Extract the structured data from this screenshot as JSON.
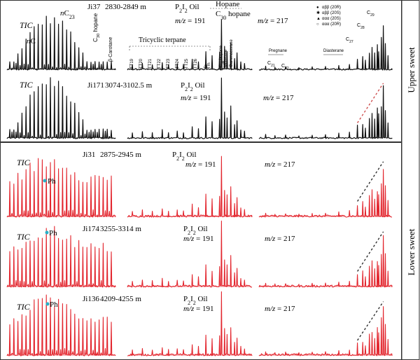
{
  "chart_data": {
    "type": "line",
    "groups": [
      {
        "label": "Upper sweet"
      },
      {
        "label": "Lower sweet"
      }
    ],
    "legend": [
      "αββ (20R)",
      "αββ (20S)",
      "ααα (20S)",
      "ααα (20R)"
    ],
    "rows": [
      {
        "well": "Ji37",
        "depth": "2830-2849 m",
        "oil": "P2I2 Oil",
        "ion191": "m/z = 191",
        "ion217": "m/z = 217",
        "tic": "TIC",
        "color": "#111111",
        "labels": {
          "nC23": "nC23",
          "nC": "nC",
          "c30hop": "C30 hopane",
          "carot": "β-Carotane",
          "tric": "Tricyclic terpane",
          "hop": "Hopane",
          "hopc30": "C30 hopane",
          "tt": [
            "TT19",
            "TT20",
            "TT21",
            "TT22",
            "TT23",
            "TT24",
            "TT25",
            "TT26"
          ],
          "ts": "Ts",
          "tm": "Tm",
          "peakhop": "C30 hopane",
          "morph": "Moretane",
          "gam": "Gammacerane",
          "preg": "Pregnane",
          "dia": "Diasterane",
          "c21": "C21",
          "c22": "C22",
          "c27": "C27",
          "c28": "C28",
          "c29": "C29"
        }
      },
      {
        "well": "Ji171",
        "depth": "3074-3102.5 m",
        "oil": "P2I2 Oil",
        "ion191": "m/z = 191",
        "ion217": "m/z = 217",
        "tic": "TIC",
        "color": "#111111"
      },
      {
        "well": "Ji31",
        "depth": "2875-2945 m",
        "oil": "P2I2 Oil",
        "ion191": "m/z = 191",
        "ion217": "m/z = 217",
        "tic": "TIC",
        "color": "#e3262e",
        "ph": "Ph"
      },
      {
        "well": "Ji174",
        "depth": "3255-3314 m",
        "oil": "P2I2 Oil",
        "ion191": "m/z = 191",
        "ion217": "m/z = 217",
        "tic": "TIC",
        "color": "#e3262e",
        "ph": "Ph"
      },
      {
        "well": "Ji136",
        "depth": "4209-4255 m",
        "oil": "P2I2 Oil",
        "ion191": "m/z = 191",
        "ion217": "m/z = 217",
        "tic": "TIC",
        "color": "#e3262e",
        "ph": "Ph"
      }
    ]
  }
}
